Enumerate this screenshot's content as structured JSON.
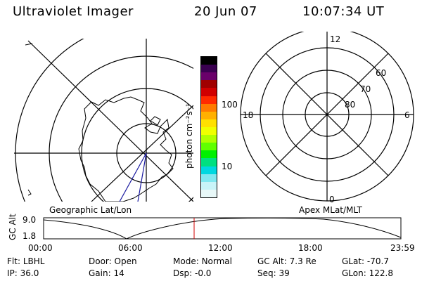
{
  "header": {
    "instrument": "Ultraviolet Imager",
    "date": "20 Jun 07",
    "time": "10:07:34 UT"
  },
  "geographic_panel": {
    "label": "Geographic Lat/Lon"
  },
  "colorbar": {
    "unit_label": "photon cm⁻²s⁻¹",
    "ticks": [
      "100",
      "10"
    ],
    "colors": [
      "#000000",
      "#3a0050",
      "#6a006a",
      "#a00000",
      "#d00000",
      "#ff2a00",
      "#ff7a00",
      "#ffb000",
      "#ffe000",
      "#f0ff00",
      "#b0ff00",
      "#60ff00",
      "#00f000",
      "#00e080",
      "#00d8e0",
      "#80e8f0",
      "#c8f4f8",
      "#e8f8f8"
    ]
  },
  "polar_panel": {
    "label": "Apex MLat/MLT",
    "mlt_labels": {
      "top": "12",
      "left": "18",
      "right": "6",
      "bottom": "0"
    },
    "lat_labels": [
      "60",
      "70",
      "80"
    ]
  },
  "altitude_panel": {
    "ylabel": "GC Alt",
    "yticks": [
      "9.0",
      "1.8"
    ],
    "xticks": [
      "00:00",
      "06:00",
      "12:00",
      "18:00",
      "23:59"
    ],
    "marker_color": "#d00000"
  },
  "status": {
    "row1": [
      {
        "label": "Flt:",
        "value": "LBHL"
      },
      {
        "label": "Door:",
        "value": "Open"
      },
      {
        "label": "Mode:",
        "value": "Normal"
      },
      {
        "label": "GC Alt:",
        "value": "7.3 Re"
      },
      {
        "label": "GLat:",
        "value": "-70.7"
      }
    ],
    "row2": [
      {
        "label": "IP:",
        "value": "36.0"
      },
      {
        "label": "Gain:",
        "value": "14"
      },
      {
        "label": "Dsp:",
        "value": "-0.0"
      },
      {
        "label": "Seq:",
        "value": "39"
      },
      {
        "label": "GLon:",
        "value": "122.8"
      }
    ]
  }
}
